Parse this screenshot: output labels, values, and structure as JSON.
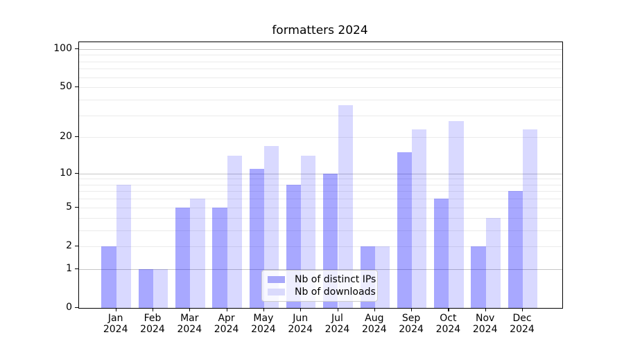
{
  "chart_data": {
    "type": "bar",
    "title": "formatters 2024",
    "xlabel": "",
    "ylabel": "",
    "categories": [
      "Jan 2024",
      "Feb 2024",
      "Mar 2024",
      "Apr 2024",
      "May 2024",
      "Jun 2024",
      "Jul 2024",
      "Aug 2024",
      "Sep 2024",
      "Oct 2024",
      "Nov 2024",
      "Dec 2024"
    ],
    "series": [
      {
        "name": "Nb of distinct IPs",
        "color": "rgba(0,0,255,0.34)",
        "swatch_color": "#a8a8fa",
        "values": [
          2,
          1,
          5,
          5,
          11,
          8,
          10,
          2,
          15,
          6,
          2,
          7
        ]
      },
      {
        "name": "Nb of downloads",
        "color": "rgba(0,0,255,0.15)",
        "swatch_color": "#dadafc",
        "values": [
          8,
          1,
          6,
          14,
          17,
          14,
          36,
          2,
          23,
          27,
          4,
          23
        ]
      }
    ],
    "yscale": "log1p",
    "ylim": [
      0,
      113
    ],
    "yticks": [
      0,
      1,
      2,
      5,
      10,
      20,
      50,
      100
    ],
    "grid_major": [
      1,
      10,
      100
    ],
    "grid_minor": [
      2,
      3,
      4,
      5,
      6,
      7,
      8,
      9,
      20,
      30,
      40,
      50,
      60,
      70,
      80,
      90
    ],
    "grid": "on",
    "legend_position": "lower center",
    "colors": {
      "major_grid": "#c6c6c6",
      "minor_grid": "#ebebeb",
      "spine": "#000000"
    }
  }
}
